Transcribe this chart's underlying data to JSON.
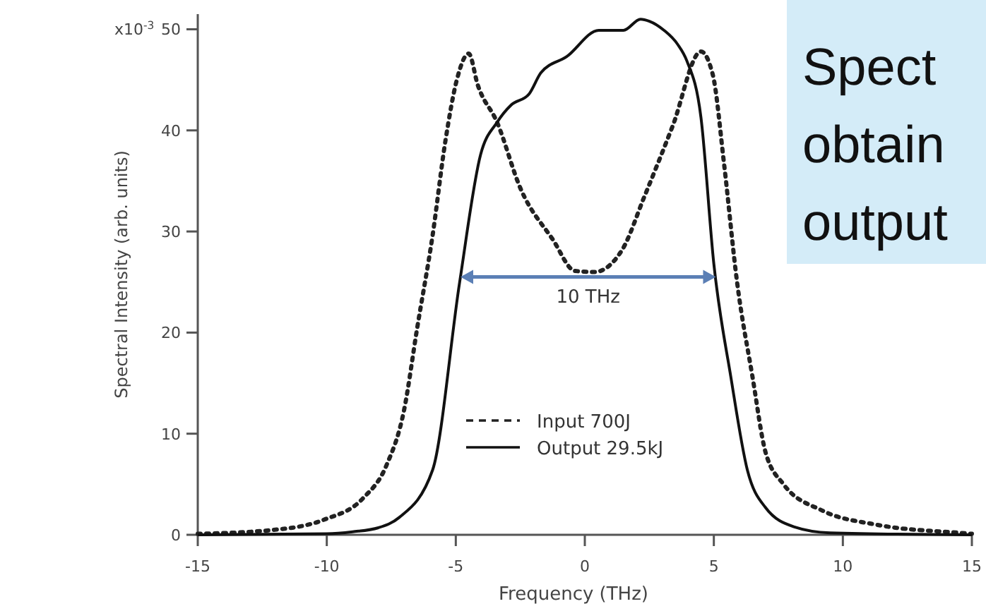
{
  "chart_data": {
    "type": "line",
    "xlabel": "Frequency (THz)",
    "ylabel": "Spectral Intensity (arb. units)",
    "xlim": [
      -15,
      15
    ],
    "xticks": [
      -15,
      -10,
      -5,
      0,
      5,
      10,
      15
    ],
    "ylim": [
      0,
      51.5
    ],
    "yticks": [
      0,
      10,
      20,
      30,
      40,
      50
    ],
    "grid": false,
    "legend": "bottom",
    "marker": "none",
    "series": [
      {
        "name": "Input 700J",
        "color": "#222222",
        "line_style": "dotted",
        "x": [
          -15,
          -12,
          -10.1,
          -8.6,
          -7.7,
          -7,
          -6.5,
          -5.9,
          -5.4,
          -4.96,
          -4.5,
          -4.15,
          -3.4,
          -2.5,
          -1.24,
          -0.38,
          0.38,
          1.45,
          2.3,
          3.4,
          4.5,
          4.96,
          5.4,
          5.9,
          6.5,
          7,
          7.7,
          9.2,
          11.3,
          14.5,
          15
        ],
        "values": [
          0.1,
          0.5,
          1.5,
          3.6,
          6.8,
          12.4,
          20.4,
          29.6,
          39,
          45,
          47.6,
          44.5,
          40.8,
          34.3,
          29.2,
          26.1,
          26,
          28.2,
          33.4,
          40.4,
          47.8,
          45.5,
          36.6,
          25,
          15.6,
          8.2,
          5,
          2.4,
          1,
          0.2,
          0.1
        ]
      },
      {
        "name": "Output 29.5kJ",
        "color": "#111111",
        "line_style": "solid",
        "x": [
          -15,
          -10,
          -9,
          -8,
          -7.2,
          -5.9,
          -4.85,
          -4.04,
          -3.4,
          -2.86,
          -2.16,
          -1.7,
          -0.7,
          0.54,
          1.5,
          2.16,
          2.5,
          3.07,
          3.6,
          3.95,
          4.5,
          5,
          5.66,
          6.3,
          7,
          8.1,
          9.5,
          15
        ],
        "values": [
          0,
          0.1,
          0.3,
          0.7,
          1.7,
          6.4,
          25,
          37.6,
          40.8,
          42.5,
          43.6,
          45.7,
          47.3,
          49.9,
          49.9,
          51,
          50.8,
          49.9,
          48.5,
          46.9,
          41.3,
          26.8,
          15.6,
          6.4,
          2.7,
          0.8,
          0.2,
          0
        ]
      }
    ],
    "annotations": [
      "x10$^{-3}$",
      "10 THz",
      "Spect\nobtain\noutput"
    ]
  }
}
